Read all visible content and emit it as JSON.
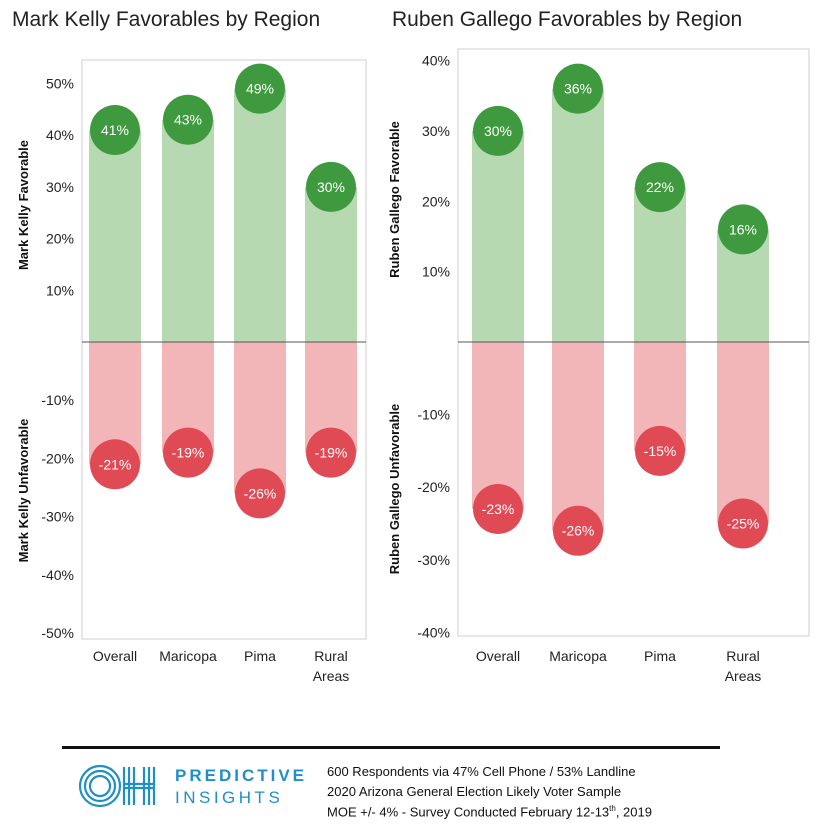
{
  "charts": [
    {
      "title": "Mark Kelly Favorables by Region"
    },
    {
      "title": "Ruben Gallego Favorables by Region"
    }
  ],
  "footer": {
    "brand_line1": "PREDICTIVE",
    "brand_line2": "INSIGHTS",
    "logo_text": "OH",
    "line1": "600 Respondents via 47% Cell Phone / 53% Landline",
    "line2": "2020 Arizona General Election Likely Voter Sample",
    "line3_pre": "MOE +/- 4% - Survey Conducted February 12-13",
    "line3_sup": "th",
    "line3_post": ", 2019"
  },
  "colors": {
    "favorable_bar": "#b7d9b2",
    "favorable_circle": "#3f9a3f",
    "unfavorable_bar": "#f2b5b8",
    "unfavorable_circle": "#e04a55",
    "logo_blue": "#1f8fc8"
  },
  "chart_data": [
    {
      "type": "bar",
      "title": "Mark Kelly Favorables by Region",
      "categories": [
        "Overall",
        "Maricopa",
        "Pima",
        "Rural Areas"
      ],
      "series": [
        {
          "name": "Mark Kelly Favorable",
          "values": [
            41,
            43,
            49,
            30
          ]
        },
        {
          "name": "Mark Kelly Unfavorable",
          "values": [
            -21,
            -19,
            -26,
            -19
          ]
        }
      ],
      "ylim_top": [
        0,
        53
      ],
      "ylim_bottom": [
        -51,
        0
      ],
      "ticks_top": [
        10,
        20,
        30,
        40,
        50
      ],
      "ticks_bottom": [
        -10,
        -20,
        -30,
        -40,
        -50
      ],
      "tick_suffix": "%",
      "ylabel_top": "Mark Kelly Favorable",
      "ylabel_bottom": "Mark Kelly Unfavorable"
    },
    {
      "type": "bar",
      "title": "Ruben Gallego Favorables by Region",
      "categories": [
        "Overall",
        "Maricopa",
        "Pima",
        "Rural Areas"
      ],
      "series": [
        {
          "name": "Ruben Gallego Favorable",
          "values": [
            30,
            36,
            22,
            16
          ]
        },
        {
          "name": "Ruben Gallego Unfavorable",
          "values": [
            -23,
            -26,
            -15,
            -25
          ]
        }
      ],
      "ylim_top": [
        0,
        40.5
      ],
      "ylim_bottom": [
        -40.5,
        0
      ],
      "ticks_top": [
        10,
        20,
        30,
        40
      ],
      "ticks_bottom": [
        -10,
        -20,
        -30,
        -40
      ],
      "tick_suffix": "%",
      "ylabel_top": "Ruben Gallego Favorable",
      "ylabel_bottom": "Ruben Gallego Unfavorable"
    }
  ]
}
